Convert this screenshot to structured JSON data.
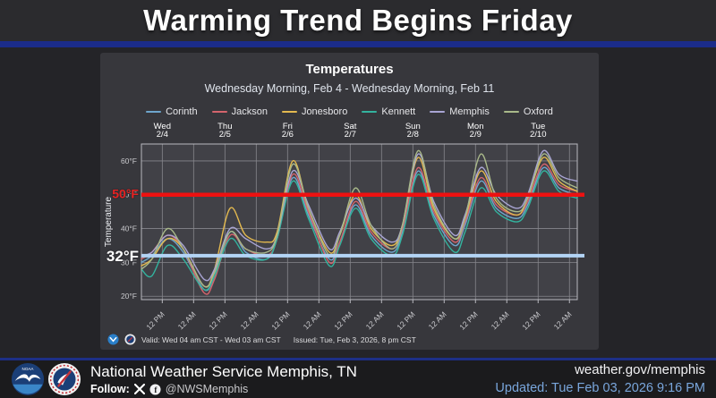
{
  "header": {
    "title": "Warming Trend Begins Friday"
  },
  "chart_card": {
    "title": "Temperatures",
    "subtitle": "Wednesday Morning, Feb 4 - Wednesday Morning, Feb 11",
    "valid_text": "Valid: Wed 04 am CST - Wed 03 am CST",
    "issued_text": "Issued: Tue, Feb 3, 2026, 8 pm CST"
  },
  "chart_data": {
    "type": "line",
    "title": "Temperatures",
    "subtitle": "Wednesday Morning, Feb 4 - Wednesday Morning, Feb 11",
    "xlabel": "",
    "ylabel": "Temperature",
    "ylim": [
      19,
      65
    ],
    "xlim_hours": [
      4,
      171
    ],
    "grid": true,
    "legend_position": "top",
    "y_ticks": [
      {
        "value": 20,
        "label": "20°F"
      },
      {
        "value": 30,
        "label": "30°F"
      },
      {
        "value": 40,
        "label": "40°F"
      },
      {
        "value": 50,
        "label": "50°F"
      },
      {
        "value": 60,
        "label": "60°F"
      }
    ],
    "x_ticks": [
      {
        "hour": 12,
        "label": "12 PM"
      },
      {
        "hour": 24,
        "label": "12 AM"
      },
      {
        "hour": 36,
        "label": "12 PM"
      },
      {
        "hour": 48,
        "label": "12 AM"
      },
      {
        "hour": 60,
        "label": "12 PM"
      },
      {
        "hour": 72,
        "label": "12 AM"
      },
      {
        "hour": 84,
        "label": "12 PM"
      },
      {
        "hour": 96,
        "label": "12 AM"
      },
      {
        "hour": 108,
        "label": "12 PM"
      },
      {
        "hour": 120,
        "label": "12 AM"
      },
      {
        "hour": 132,
        "label": "12 PM"
      },
      {
        "hour": 144,
        "label": "12 AM"
      },
      {
        "hour": 156,
        "label": "12 PM"
      },
      {
        "hour": 168,
        "label": "12 AM"
      }
    ],
    "day_labels": [
      {
        "hour": 12,
        "line1": "Wed",
        "line2": "2/4"
      },
      {
        "hour": 36,
        "line1": "Thu",
        "line2": "2/5"
      },
      {
        "hour": 60,
        "line1": "Fri",
        "line2": "2/6"
      },
      {
        "hour": 84,
        "line1": "Sat",
        "line2": "2/7"
      },
      {
        "hour": 108,
        "line1": "Sun",
        "line2": "2/8"
      },
      {
        "hour": 132,
        "line1": "Mon",
        "line2": "2/9"
      },
      {
        "hour": 156,
        "line1": "Tue",
        "line2": "2/10"
      }
    ],
    "x_hours": [
      4,
      8,
      14,
      20,
      28,
      32,
      38,
      44,
      52,
      56,
      62,
      68,
      76,
      80,
      86,
      92,
      100,
      104,
      110,
      116,
      124,
      128,
      134,
      140,
      148,
      152,
      158,
      164,
      171
    ],
    "series": [
      {
        "name": "Corinth",
        "color": "#6ea6cd",
        "values": [
          30,
          32,
          37,
          33,
          22,
          26,
          39,
          33,
          31,
          37,
          55,
          44,
          31,
          36,
          47,
          38,
          33,
          39,
          57,
          44,
          35,
          41,
          54,
          46,
          43,
          47,
          58,
          52,
          50
        ]
      },
      {
        "name": "Jackson",
        "color": "#d4646c",
        "values": [
          31,
          33,
          38,
          34,
          21,
          25,
          38,
          34,
          32,
          37,
          56,
          45,
          30,
          36,
          48,
          39,
          34,
          40,
          58,
          45,
          36,
          42,
          55,
          47,
          44,
          48,
          59,
          53,
          51
        ]
      },
      {
        "name": "Jonesboro",
        "color": "#e3b94f",
        "values": [
          29,
          31,
          37,
          34,
          23,
          28,
          46,
          38,
          36,
          39,
          60,
          46,
          33,
          38,
          50,
          40,
          35,
          41,
          61,
          46,
          37,
          43,
          57,
          48,
          44,
          49,
          61,
          54,
          51
        ]
      },
      {
        "name": "Kennett",
        "color": "#33b39e",
        "values": [
          28,
          26,
          35,
          31,
          22,
          26,
          37,
          32,
          31,
          37,
          54,
          43,
          29,
          35,
          46,
          37,
          32,
          38,
          56,
          43,
          33,
          39,
          52,
          45,
          42,
          46,
          57,
          51,
          49
        ]
      },
      {
        "name": "Memphis",
        "color": "#a9a5d4",
        "values": [
          32,
          33,
          38,
          35,
          25,
          28,
          40,
          37,
          34,
          38,
          57,
          47,
          34,
          39,
          49,
          41,
          36,
          41,
          62,
          48,
          38,
          44,
          58,
          50,
          46,
          50,
          63,
          56,
          54
        ]
      },
      {
        "name": "Oxford",
        "color": "#a9b98a",
        "values": [
          28,
          31,
          40,
          34,
          23,
          27,
          39,
          34,
          33,
          38,
          59,
          46,
          32,
          38,
          52,
          41,
          34,
          41,
          63,
          47,
          37,
          43,
          62,
          49,
          45,
          49,
          62,
          55,
          52
        ]
      }
    ],
    "reference_lines": [
      {
        "value": 50,
        "label": "50°F",
        "color": "#ed1111",
        "label_color": "#e62222",
        "width": 4.5,
        "label_size": 14,
        "label_dy": 4
      },
      {
        "value": 32,
        "label": "32°F",
        "color": "#b3d4f5",
        "label_color": "#ffffff",
        "width": 4,
        "label_size": 17,
        "label_dy": 6
      }
    ]
  },
  "footer": {
    "org": "National Weather Service Memphis, TN",
    "follow_label": "Follow:",
    "handle": "@NWSMemphis",
    "website": "weather.gov/memphis",
    "updated": "Updated: Tue Feb 03, 2026 9:16 PM"
  }
}
